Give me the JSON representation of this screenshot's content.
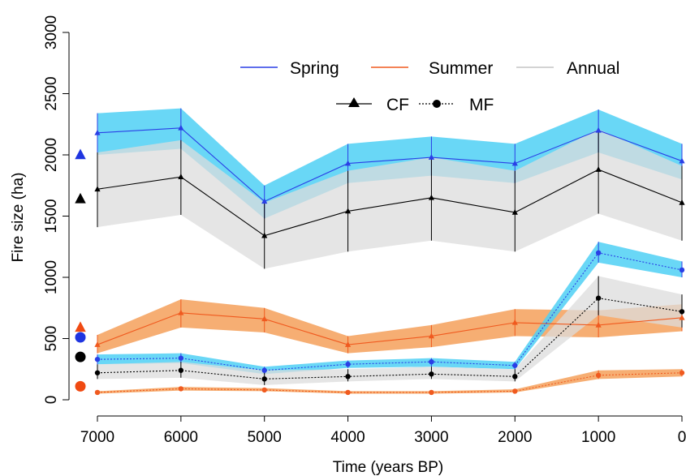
{
  "chart_data": {
    "type": "line",
    "title": "",
    "xlabel": "Time (years BP)",
    "ylabel": "Fire size (ha)",
    "x": [
      7000,
      6000,
      5000,
      4000,
      3000,
      2000,
      1000,
      0
    ],
    "x_ticks": [
      "7000",
      "6000",
      "5000",
      "4000",
      "3000",
      "2000",
      "1000",
      "0"
    ],
    "x_reversed": true,
    "xlim": [
      7000,
      0
    ],
    "ylim": [
      0,
      3000
    ],
    "y_ticks": [
      "0",
      "500",
      "1000",
      "1500",
      "2000",
      "2500",
      "3000"
    ],
    "grid": false,
    "legend_position": "top-center",
    "legend": {
      "seasons": [
        {
          "label": "Spring",
          "color": "#2a3fe6"
        },
        {
          "label": "Summer",
          "color": "#f05a1f"
        },
        {
          "label": "Annual",
          "color": "#d3d3d3"
        }
      ],
      "models": [
        {
          "label": "CF",
          "line": "solid",
          "marker": "triangle"
        },
        {
          "label": "MF",
          "line": "dotted",
          "marker": "circle"
        }
      ]
    },
    "series": [
      {
        "season": "Spring",
        "model": "CF",
        "line_color": "#2a3fe6",
        "band_color": "#4fd0f5",
        "values": [
          2180,
          2220,
          1620,
          1930,
          1980,
          1930,
          2200,
          1950
        ],
        "lower": [
          2000,
          2050,
          1480,
          1770,
          1830,
          1770,
          2020,
          1800
        ],
        "upper": [
          2340,
          2380,
          1750,
          2090,
          2150,
          2090,
          2370,
          2090
        ]
      },
      {
        "season": "Annual",
        "model": "CF",
        "line_color": "#000000",
        "band_color": "#dcdcdc",
        "values": [
          1720,
          1820,
          1340,
          1540,
          1650,
          1530,
          1880,
          1610
        ],
        "lower": [
          1410,
          1510,
          1070,
          1210,
          1300,
          1210,
          1520,
          1300
        ],
        "upper": [
          2020,
          2120,
          1610,
          1870,
          1980,
          1870,
          2210,
          1910
        ]
      },
      {
        "season": "Summer",
        "model": "CF",
        "line_color": "#f05a1f",
        "band_color": "#f5a05a",
        "values": [
          450,
          710,
          660,
          450,
          520,
          630,
          610,
          670
        ],
        "lower": [
          380,
          590,
          550,
          380,
          430,
          520,
          510,
          560
        ],
        "upper": [
          530,
          820,
          750,
          520,
          610,
          740,
          730,
          780
        ]
      },
      {
        "season": "Spring",
        "model": "MF",
        "line_color": "#2a3fe6",
        "band_color": "#4fd0f5",
        "values": [
          330,
          340,
          240,
          290,
          310,
          280,
          1200,
          1060
        ],
        "lower": [
          290,
          300,
          210,
          260,
          270,
          250,
          1120,
          1000
        ],
        "upper": [
          370,
          380,
          270,
          320,
          340,
          310,
          1290,
          1130
        ]
      },
      {
        "season": "Annual",
        "model": "MF",
        "line_color": "#000000",
        "band_color": "#dcdcdc",
        "values": [
          220,
          240,
          170,
          190,
          210,
          190,
          830,
          720
        ],
        "lower": [
          170,
          180,
          120,
          150,
          170,
          150,
          690,
          590
        ],
        "upper": [
          290,
          310,
          240,
          250,
          270,
          250,
          1010,
          860
        ]
      },
      {
        "season": "Summer",
        "model": "MF",
        "line_color": "#f05a1f",
        "band_color": "#f5a05a",
        "values": [
          60,
          90,
          80,
          60,
          60,
          70,
          200,
          220
        ],
        "lower": [
          50,
          75,
          70,
          50,
          50,
          60,
          170,
          190
        ],
        "upper": [
          70,
          105,
          95,
          70,
          70,
          85,
          240,
          250
        ]
      }
    ],
    "reference_points": [
      {
        "season": "Spring",
        "model": "CF",
        "value": 2000,
        "color": "#1f35e0",
        "marker": "triangle"
      },
      {
        "season": "Annual",
        "model": "CF",
        "value": 1640,
        "color": "#000000",
        "marker": "triangle"
      },
      {
        "season": "Summer",
        "model": "CF",
        "value": 590,
        "color": "#f04a12",
        "marker": "triangle"
      },
      {
        "season": "Spring",
        "model": "MF",
        "value": 510,
        "color": "#1f35e0",
        "marker": "circle"
      },
      {
        "season": "Annual",
        "model": "MF",
        "value": 350,
        "color": "#000000",
        "marker": "circle"
      },
      {
        "season": "Summer",
        "model": "MF",
        "value": 110,
        "color": "#f04a12",
        "marker": "circle"
      }
    ]
  }
}
